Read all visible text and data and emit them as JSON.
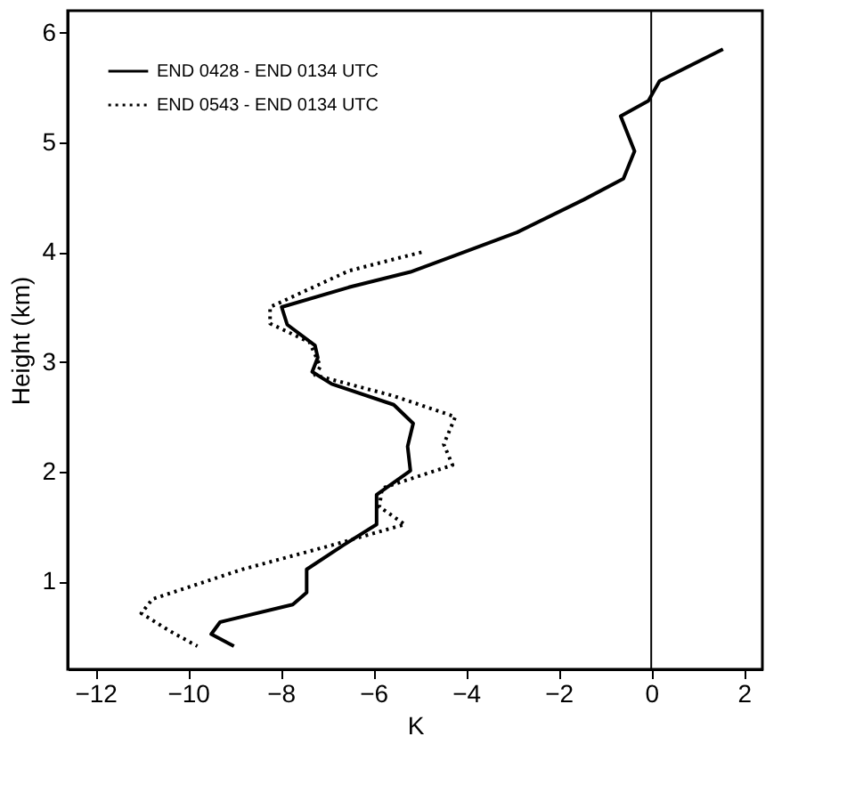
{
  "chart_data": {
    "type": "line",
    "xlabel": "K",
    "ylabel": "Height (km)",
    "xlim": [
      -12.6,
      2.4
    ],
    "ylim": [
      0.2,
      6.2
    ],
    "xticks": [
      -12,
      -10,
      -8,
      -6,
      -4,
      -2,
      0,
      2
    ],
    "yticks": [
      1,
      2,
      3,
      4,
      5,
      6
    ],
    "grid": false,
    "legend": "top left",
    "marker": "none",
    "ref_lines": [
      {
        "axis": "x",
        "value": 0,
        "color": "#000000",
        "line_style": "solid"
      }
    ],
    "series": [
      {
        "name": "END 0428 - END 0134 UTC",
        "color": "#000000",
        "line_style": "solid",
        "x": [
          1.55,
          0.18,
          -0.06,
          -0.66,
          -0.36,
          -0.6,
          -1.45,
          -2.9,
          -5.2,
          -6.53,
          -7.98,
          -7.86,
          -7.26,
          -7.2,
          -7.32,
          -6.9,
          -5.56,
          -5.14,
          -5.26,
          -5.2,
          -5.93,
          -5.93,
          -6.65,
          -7.44,
          -7.44,
          -7.74,
          -9.31,
          -9.5,
          -9.01
        ],
        "values": [
          5.85,
          5.56,
          5.38,
          5.24,
          4.92,
          4.67,
          4.48,
          4.18,
          3.82,
          3.68,
          3.5,
          3.34,
          3.15,
          3.04,
          2.91,
          2.8,
          2.61,
          2.44,
          2.23,
          2.01,
          1.79,
          1.52,
          1.33,
          1.11,
          0.9,
          0.79,
          0.63,
          0.52,
          0.41
        ]
      },
      {
        "name": "END 0543 - END 0134 UTC",
        "color": "#000000",
        "line_style": "dotted",
        "x": [
          -4.96,
          -6.53,
          -8.23,
          -8.23,
          -7.38,
          -7.14,
          -7.26,
          -5.56,
          -4.23,
          -4.48,
          -4.29,
          -5.81,
          -5.87,
          -5.32,
          -6.9,
          -8.83,
          -10.77,
          -11.01,
          -10.4,
          -9.8
        ],
        "values": [
          4.0,
          3.83,
          3.5,
          3.35,
          3.18,
          2.96,
          2.88,
          2.69,
          2.5,
          2.25,
          2.06,
          1.85,
          1.68,
          1.52,
          1.33,
          1.11,
          0.84,
          0.71,
          0.55,
          0.41
        ]
      }
    ]
  }
}
